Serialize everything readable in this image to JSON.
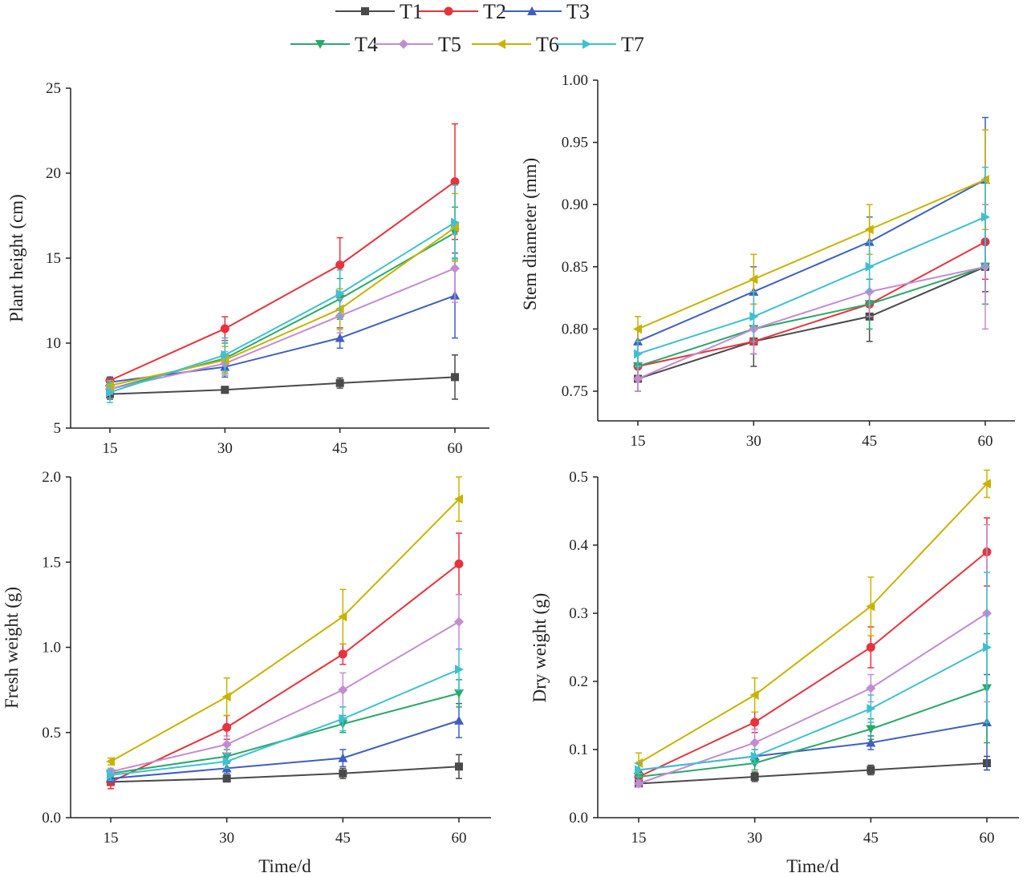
{
  "legend": [
    "T1",
    "T2",
    "T3",
    "T4",
    "T5",
    "T6",
    "T7"
  ],
  "colors": {
    "T1": "#4a4a4a",
    "T2": "#e8323c",
    "T3": "#3f5fc0",
    "T4": "#2aa86a",
    "T5": "#c58bd0",
    "T6": "#c9b200",
    "T7": "#3ec0d0"
  },
  "markers": {
    "T1": "square",
    "T2": "circle",
    "T3": "triangle-up",
    "T4": "triangle-down",
    "T5": "diamond",
    "T6": "triangle-left",
    "T7": "triangle-right"
  },
  "chart_data": [
    {
      "type": "line",
      "ylabel": "Plant height (cm)",
      "xlabel": "",
      "x": [
        15,
        30,
        45,
        60
      ],
      "ylim": [
        5,
        25
      ],
      "yticks": [
        "5",
        "10",
        "15",
        "20",
        "25"
      ],
      "xticks": [
        "15",
        "30",
        "45",
        "60"
      ],
      "series": [
        {
          "name": "T1",
          "values": [
            7.0,
            7.25,
            7.65,
            8.0
          ],
          "errors": [
            0.3,
            0.2,
            0.3,
            1.3
          ]
        },
        {
          "name": "T2",
          "values": [
            7.8,
            10.85,
            14.6,
            19.5
          ],
          "errors": [
            0.2,
            0.7,
            1.6,
            3.4
          ]
        },
        {
          "name": "T3",
          "values": [
            7.7,
            8.6,
            10.3,
            12.8
          ],
          "errors": [
            0.3,
            0.6,
            0.6,
            2.5
          ]
        },
        {
          "name": "T4",
          "values": [
            7.3,
            9.1,
            12.6,
            16.5
          ],
          "errors": [
            0.3,
            0.9,
            1.2,
            1.5
          ]
        },
        {
          "name": "T5",
          "values": [
            7.3,
            8.8,
            11.6,
            14.4
          ],
          "errors": [
            0.3,
            0.7,
            1.0,
            2.0
          ]
        },
        {
          "name": "T6",
          "values": [
            7.5,
            9.0,
            12.0,
            16.8
          ],
          "errors": [
            0.3,
            0.8,
            1.2,
            2.0
          ]
        },
        {
          "name": "T7",
          "values": [
            7.1,
            9.3,
            12.9,
            17.1
          ],
          "errors": [
            0.6,
            1.0,
            1.4,
            2.2
          ]
        }
      ]
    },
    {
      "type": "line",
      "ylabel": "Stem diameter (mm)",
      "xlabel": "",
      "x": [
        15,
        30,
        45,
        60
      ],
      "ylim": [
        0.75,
        1.0
      ],
      "yticks": [
        "0.75",
        "0.80",
        "0.85",
        "0.90",
        "0.95",
        "1.00"
      ],
      "xticks": [
        "15",
        "30",
        "45",
        "60"
      ],
      "series": [
        {
          "name": "T1",
          "values": [
            0.76,
            0.79,
            0.81,
            0.85
          ],
          "errors": [
            0.01,
            0.02,
            0.02,
            0.02
          ]
        },
        {
          "name": "T2",
          "values": [
            0.77,
            0.79,
            0.82,
            0.87
          ],
          "errors": [
            0.01,
            0.01,
            0.01,
            0.03
          ]
        },
        {
          "name": "T3",
          "values": [
            0.79,
            0.83,
            0.87,
            0.92
          ],
          "errors": [
            0.01,
            0.02,
            0.02,
            0.05
          ]
        },
        {
          "name": "T4",
          "values": [
            0.77,
            0.8,
            0.82,
            0.85
          ],
          "errors": [
            0.01,
            0.02,
            0.02,
            0.03
          ]
        },
        {
          "name": "T5",
          "values": [
            0.76,
            0.8,
            0.83,
            0.85
          ],
          "errors": [
            0.01,
            0.02,
            0.02,
            0.05
          ]
        },
        {
          "name": "T6",
          "values": [
            0.8,
            0.84,
            0.88,
            0.92
          ],
          "errors": [
            0.01,
            0.02,
            0.02,
            0.04
          ]
        },
        {
          "name": "T7",
          "values": [
            0.78,
            0.81,
            0.85,
            0.89
          ],
          "errors": [
            0.01,
            0.02,
            0.02,
            0.04
          ]
        }
      ]
    },
    {
      "type": "line",
      "ylabel": "Fresh weight (g)",
      "xlabel": "Time/d",
      "x": [
        15,
        30,
        45,
        60
      ],
      "ylim": [
        0,
        2.0
      ],
      "yticks": [
        "0.0",
        "0.5",
        "1.0",
        "1.5",
        "2.0"
      ],
      "xticks": [
        "15",
        "30",
        "45",
        "60"
      ],
      "series": [
        {
          "name": "T1",
          "values": [
            0.21,
            0.23,
            0.26,
            0.3
          ],
          "errors": [
            0.02,
            0.02,
            0.03,
            0.07
          ]
        },
        {
          "name": "T2",
          "values": [
            0.21,
            0.53,
            0.96,
            1.49
          ],
          "errors": [
            0.04,
            0.07,
            0.06,
            0.18
          ]
        },
        {
          "name": "T3",
          "values": [
            0.23,
            0.29,
            0.35,
            0.57
          ],
          "errors": [
            0.02,
            0.03,
            0.05,
            0.1
          ]
        },
        {
          "name": "T4",
          "values": [
            0.26,
            0.36,
            0.55,
            0.73
          ],
          "errors": [
            0.02,
            0.04,
            0.05,
            0.08
          ]
        },
        {
          "name": "T5",
          "values": [
            0.27,
            0.43,
            0.75,
            1.15
          ],
          "errors": [
            0.02,
            0.05,
            0.1,
            0.16
          ]
        },
        {
          "name": "T6",
          "values": [
            0.33,
            0.71,
            1.18,
            1.87
          ],
          "errors": [
            0.02,
            0.11,
            0.16,
            0.13
          ]
        },
        {
          "name": "T7",
          "values": [
            0.25,
            0.33,
            0.58,
            0.87
          ],
          "errors": [
            0.03,
            0.04,
            0.07,
            0.12
          ]
        }
      ]
    },
    {
      "type": "line",
      "ylabel": "Dry weight (g)",
      "xlabel": "Time/d",
      "x": [
        15,
        30,
        45,
        60
      ],
      "ylim": [
        0,
        0.5
      ],
      "yticks": [
        "0.0",
        "0.1",
        "0.2",
        "0.3",
        "0.4",
        "0.5"
      ],
      "xticks": [
        "15",
        "30",
        "45",
        "60"
      ],
      "series": [
        {
          "name": "T1",
          "values": [
            0.05,
            0.06,
            0.07,
            0.08
          ],
          "errors": [
            0.005,
            0.007,
            0.007,
            0.01
          ]
        },
        {
          "name": "T2",
          "values": [
            0.06,
            0.14,
            0.25,
            0.39
          ],
          "errors": [
            0.01,
            0.015,
            0.03,
            0.05
          ]
        },
        {
          "name": "T3",
          "values": [
            0.07,
            0.09,
            0.11,
            0.14
          ],
          "errors": [
            0.01,
            0.01,
            0.01,
            0.07
          ]
        },
        {
          "name": "T4",
          "values": [
            0.06,
            0.08,
            0.13,
            0.19
          ],
          "errors": [
            0.01,
            0.01,
            0.015,
            0.08
          ]
        },
        {
          "name": "T5",
          "values": [
            0.05,
            0.11,
            0.19,
            0.3
          ],
          "errors": [
            0.005,
            0.02,
            0.02,
            0.13
          ]
        },
        {
          "name": "T6",
          "values": [
            0.08,
            0.18,
            0.31,
            0.49
          ],
          "errors": [
            0.015,
            0.025,
            0.043,
            0.02
          ]
        },
        {
          "name": "T7",
          "values": [
            0.07,
            0.09,
            0.16,
            0.25
          ],
          "errors": [
            0.01,
            0.01,
            0.02,
            0.11
          ]
        }
      ]
    }
  ]
}
